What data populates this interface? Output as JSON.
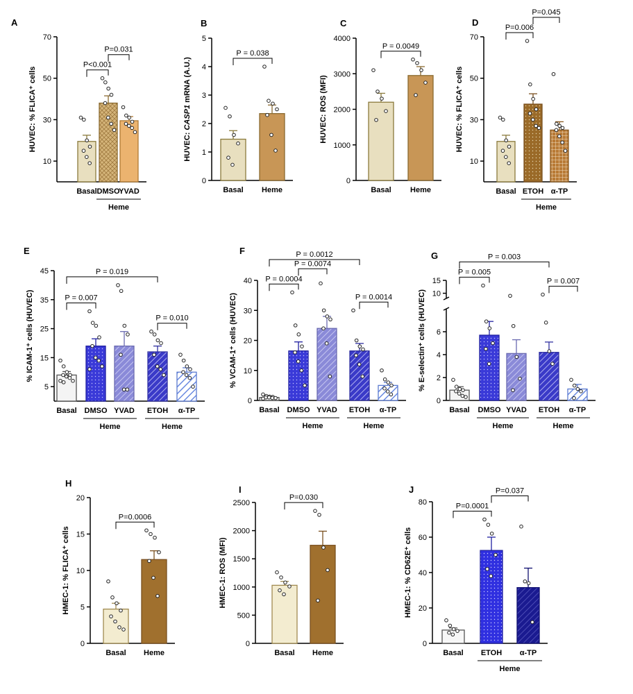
{
  "chart_data": [
    {
      "id": "A",
      "type": "bar",
      "panel_label": "A",
      "ylabel": "HUVEC: % FLICA⁺ cells",
      "ylim": [
        0,
        70
      ],
      "yticks": [
        10,
        30,
        50,
        70
      ],
      "break": null,
      "categories": [
        "Basal",
        "DMSO",
        "YVAD"
      ],
      "values": [
        19.5,
        38.0,
        29.5
      ],
      "errors": [
        3.0,
        3.5,
        2.0
      ],
      "fills": [
        "#e8dfbf",
        "hatch_tan",
        "#ebb36f"
      ],
      "strokes": [
        "#8a7a3c",
        "#8a6a30",
        "#b07a35"
      ],
      "points": [
        [
          31,
          30,
          20,
          17,
          15,
          12,
          9
        ],
        [
          50,
          48,
          45,
          42,
          38,
          31,
          28,
          25
        ],
        [
          36,
          32,
          31,
          29,
          28,
          27,
          26,
          24
        ]
      ],
      "brackets": [
        {
          "from": 0,
          "to": 1,
          "label": "P<0.001"
        },
        {
          "from": 1,
          "to": 2,
          "label": "P=0.031"
        }
      ],
      "groups": [
        {
          "from": 1,
          "to": 2,
          "label": "Heme"
        }
      ]
    },
    {
      "id": "B",
      "type": "bar",
      "panel_label": "B",
      "ylabel": "HUVEC: CASP1 mRNA  (A.U.)",
      "ylim": [
        0,
        5
      ],
      "yticks": [
        0,
        1,
        2,
        3,
        4,
        5
      ],
      "break": null,
      "categories": [
        "Basal",
        "Heme"
      ],
      "values": [
        1.45,
        2.35
      ],
      "errors": [
        0.3,
        0.3
      ],
      "fills": [
        "#e8dfbf",
        "#c89656"
      ],
      "strokes": [
        "#8a7a3c",
        "#8a6a30"
      ],
      "points": [
        [
          2.55,
          2.25,
          1.6,
          1.3,
          0.8,
          0.55
        ],
        [
          4.0,
          2.8,
          2.7,
          2.5,
          2.3,
          1.6,
          1.05
        ]
      ],
      "brackets": [
        {
          "from": 0,
          "to": 1,
          "label": "P = 0.038"
        }
      ],
      "groups": []
    },
    {
      "id": "C",
      "type": "bar",
      "panel_label": "C",
      "ylabel": "HUVEC: ROS (MFI)",
      "ylim": [
        0,
        4000
      ],
      "yticks": [
        0,
        1000,
        2000,
        3000,
        4000
      ],
      "break": null,
      "categories": [
        "Basal",
        "Heme"
      ],
      "values": [
        2200,
        2950
      ],
      "errors": [
        250,
        250
      ],
      "fills": [
        "#e8dfbf",
        "#c89656"
      ],
      "strokes": [
        "#8a7a3c",
        "#8a6a30"
      ],
      "points": [
        [
          3100,
          2500,
          2300,
          1950,
          1700
        ],
        [
          3400,
          3300,
          3100,
          2750,
          2400
        ]
      ],
      "brackets": [
        {
          "from": 0,
          "to": 1,
          "label": "P = 0.0049"
        }
      ],
      "groups": []
    },
    {
      "id": "D",
      "type": "bar",
      "panel_label": "D",
      "ylabel": "HUVEC: % FLICA⁺ cells",
      "ylim": [
        0,
        70
      ],
      "yticks": [
        10,
        30,
        50,
        70
      ],
      "break": null,
      "categories": [
        "Basal",
        "ETOH",
        "α-TP"
      ],
      "values": [
        19.5,
        37.5,
        25.0
      ],
      "errors": [
        3.0,
        5.0,
        4.0
      ],
      "fills": [
        "#e8dfbf",
        "dots_brown",
        "grid_brown"
      ],
      "strokes": [
        "#8a7a3c",
        "#7a5020",
        "#8a5a20"
      ],
      "points": [
        [
          31,
          30,
          20,
          17,
          15,
          12,
          9
        ],
        [
          68,
          47,
          40,
          35,
          33,
          30,
          27,
          26
        ],
        [
          52,
          28,
          27,
          26,
          25,
          22,
          19,
          15
        ]
      ],
      "brackets": [
        {
          "from": 0,
          "to": 1,
          "label": "P=0.006"
        },
        {
          "from": 1,
          "to": 2,
          "label": "P=0.045"
        }
      ],
      "groups": [
        {
          "from": 1,
          "to": 2,
          "label": "Heme"
        }
      ]
    },
    {
      "id": "E",
      "type": "bar",
      "panel_label": "E",
      "ylabel": "% ICAM-1⁺ cells (HUVEC)",
      "ylim": [
        0,
        45
      ],
      "yticks": [
        5,
        15,
        25,
        35,
        45
      ],
      "break": null,
      "categories": [
        "Basal",
        "DMSO",
        "YVAD",
        "ETOH",
        "α-TP"
      ],
      "values": [
        9.0,
        19.0,
        19.0,
        17.0,
        10.0
      ],
      "errors": [
        1.2,
        2.5,
        5.0,
        2.0,
        1.5
      ],
      "fills": [
        "#f4f4f4",
        "dots_blue",
        "diag_purple",
        "diag_blue",
        "diag_lightblue"
      ],
      "strokes": [
        "#555555",
        "#2020a0",
        "#6a6ab0",
        "#3030a0",
        "#5a7ad0"
      ],
      "points": [
        [
          14,
          12,
          10,
          9,
          9,
          8.5,
          8,
          7,
          7,
          6.5
        ],
        [
          31,
          27,
          26,
          22,
          19,
          15,
          14,
          12,
          11
        ],
        [
          40,
          38,
          26,
          23,
          16,
          4,
          4
        ],
        [
          24,
          23,
          21,
          20,
          16,
          12,
          11,
          9
        ],
        [
          16,
          14,
          12,
          11,
          10,
          9,
          8,
          5
        ]
      ],
      "brackets": [
        {
          "from": 0,
          "to": 1,
          "label": "P = 0.007"
        },
        {
          "from": 0,
          "to": 3,
          "label": "P = 0.019"
        },
        {
          "from": 3,
          "to": 4,
          "label": "P = 0.010"
        }
      ],
      "groups": [
        {
          "from": 1,
          "to": 2,
          "label": "Heme"
        },
        {
          "from": 3,
          "to": 4,
          "label": "Heme"
        }
      ]
    },
    {
      "id": "F",
      "type": "bar",
      "panel_label": "F",
      "ylabel": "% VCAM-1⁺ cells (HUVEC)",
      "ylim": [
        0,
        40
      ],
      "yticks": [
        0,
        10,
        20,
        30,
        40
      ],
      "break": null,
      "categories": [
        "Basal",
        "DMSO",
        "YVAD",
        "ETOH",
        "α-TP"
      ],
      "values": [
        1.0,
        16.5,
        24.0,
        16.5,
        5.0
      ],
      "errors": [
        0.3,
        3.0,
        4.0,
        2.5,
        1.0
      ],
      "fills": [
        "#f4f4f4",
        "dots_blue",
        "diag_purple",
        "diag_blue",
        "diag_lightblue"
      ],
      "strokes": [
        "#555555",
        "#2020a0",
        "#6a6ab0",
        "#3030a0",
        "#5a7ad0"
      ],
      "points": [
        [
          2,
          1.5,
          1.3,
          1.2,
          1,
          1,
          0.8,
          0.8,
          0.6
        ],
        [
          36,
          25,
          22,
          18,
          16,
          13,
          10,
          5
        ],
        [
          39,
          30,
          28,
          27,
          24,
          19,
          8
        ],
        [
          30,
          20,
          18,
          17,
          15,
          12,
          8
        ],
        [
          10,
          7,
          6,
          5,
          4,
          3,
          2
        ]
      ],
      "brackets": [
        {
          "from": 0,
          "to": 1,
          "label": "P = 0.0004"
        },
        {
          "from": 1,
          "to": 2,
          "label": "P = 0.0074"
        },
        {
          "from": 0,
          "to": 3,
          "label": "P = 0.0012"
        },
        {
          "from": 3,
          "to": 4,
          "label": "P = 0.0014"
        }
      ],
      "groups": [
        {
          "from": 1,
          "to": 2,
          "label": "Heme"
        },
        {
          "from": 3,
          "to": 4,
          "label": "Heme"
        }
      ]
    },
    {
      "id": "G",
      "type": "bar",
      "panel_label": "G",
      "ylabel": "% E-selectin⁺ cells (HUVEC)",
      "ylim": [
        0,
        15
      ],
      "yticks": [
        0,
        2,
        4,
        6,
        10,
        15
      ],
      "break": {
        "low": 8,
        "high": 8
      },
      "categories": [
        "Basal",
        "DMSO",
        "YVAD",
        "ETOH",
        "α-TP"
      ],
      "values": [
        0.9,
        5.7,
        4.1,
        4.2,
        1.0
      ],
      "errors": [
        0.3,
        1.2,
        1.2,
        0.9,
        0.4
      ],
      "fills": [
        "#f4f4f4",
        "dots_blue",
        "diag_purple",
        "diag_blue",
        "diag_lightblue"
      ],
      "strokes": [
        "#555555",
        "#2020a0",
        "#6a6ab0",
        "#3030a0",
        "#5a7ad0"
      ],
      "points": [
        [
          1.8,
          1.2,
          1.0,
          0.9,
          0.8,
          0.6,
          0.4,
          0.3
        ],
        [
          13,
          6.9,
          6.3,
          5.0,
          4.5,
          3.2
        ],
        [
          9,
          6.5,
          3.8,
          1.9,
          0.9
        ],
        [
          9.5,
          6.8,
          4.3,
          3.2
        ],
        [
          1.8,
          1.3,
          1.0,
          0.8,
          0.2
        ]
      ],
      "brackets": [
        {
          "from": 0,
          "to": 1,
          "label": "P = 0.005"
        },
        {
          "from": 0,
          "to": 3,
          "label": "P = 0.003"
        },
        {
          "from": 3,
          "to": 4,
          "label": "P = 0.007"
        }
      ],
      "groups": [
        {
          "from": 1,
          "to": 2,
          "label": "Heme"
        },
        {
          "from": 3,
          "to": 4,
          "label": "Heme"
        }
      ]
    },
    {
      "id": "H",
      "type": "bar",
      "panel_label": "H",
      "ylabel": "HMEC-1: % FLICA⁺ cells",
      "ylim": [
        0,
        20
      ],
      "yticks": [
        0,
        5,
        10,
        15,
        20
      ],
      "break": null,
      "categories": [
        "Basal",
        "Heme"
      ],
      "values": [
        4.7,
        11.5
      ],
      "errors": [
        0.8,
        1.2
      ],
      "fills": [
        "#f3ecd0",
        "#a0702e"
      ],
      "strokes": [
        "#a08a50",
        "#7a5020"
      ],
      "points": [
        [
          8.5,
          6.3,
          5.5,
          4.5,
          3.7,
          3.0,
          2.2,
          1.9
        ],
        [
          15.5,
          15.0,
          14.5,
          12.5,
          11.3,
          9.0,
          6.5
        ]
      ],
      "brackets": [
        {
          "from": 0,
          "to": 1,
          "label": "P=0.0006"
        }
      ],
      "groups": []
    },
    {
      "id": "I",
      "type": "bar",
      "panel_label": "I",
      "ylabel": "HMEC-1: ROS (MFI)",
      "ylim": [
        0,
        2500
      ],
      "yticks": [
        0,
        500,
        1000,
        1500,
        2000,
        2500
      ],
      "break": null,
      "categories": [
        "Basal",
        "Heme"
      ],
      "values": [
        1030,
        1740
      ],
      "errors": [
        70,
        250
      ],
      "fills": [
        "#f3ecd0",
        "#a0702e"
      ],
      "strokes": [
        "#a08a50",
        "#7a5020"
      ],
      "points": [
        [
          1260,
          1170,
          1080,
          1010,
          940,
          870
        ],
        [
          2350,
          2280,
          1700,
          1300,
          760
        ]
      ],
      "brackets": [
        {
          "from": 0,
          "to": 1,
          "label": "P=0.030"
        }
      ],
      "groups": []
    },
    {
      "id": "J",
      "type": "bar",
      "panel_label": "J",
      "ylabel": "HMEC-1: % CD62E⁺ cells",
      "ylim": [
        0,
        80
      ],
      "yticks": [
        0,
        20,
        40,
        60,
        80
      ],
      "break": null,
      "categories": [
        "Basal",
        "ETOH",
        "α-TP"
      ],
      "values": [
        7.5,
        52.5,
        31.5
      ],
      "errors": [
        1.2,
        7.5,
        11.0
      ],
      "fills": [
        "#f7f7f7",
        "dots_blue2",
        "diag_navy"
      ],
      "strokes": [
        "#555555",
        "#2020a0",
        "#101070"
      ],
      "points": [
        [
          13,
          10,
          8,
          7,
          6,
          5
        ],
        [
          70,
          67,
          62,
          50,
          42,
          38
        ],
        [
          66,
          35,
          34,
          12
        ]
      ],
      "brackets": [
        {
          "from": 0,
          "to": 1,
          "label": "P=0.0001"
        },
        {
          "from": 1,
          "to": 2,
          "label": "P=0.037"
        }
      ],
      "groups": [
        {
          "from": 1,
          "to": 2,
          "label": "Heme"
        }
      ]
    }
  ]
}
